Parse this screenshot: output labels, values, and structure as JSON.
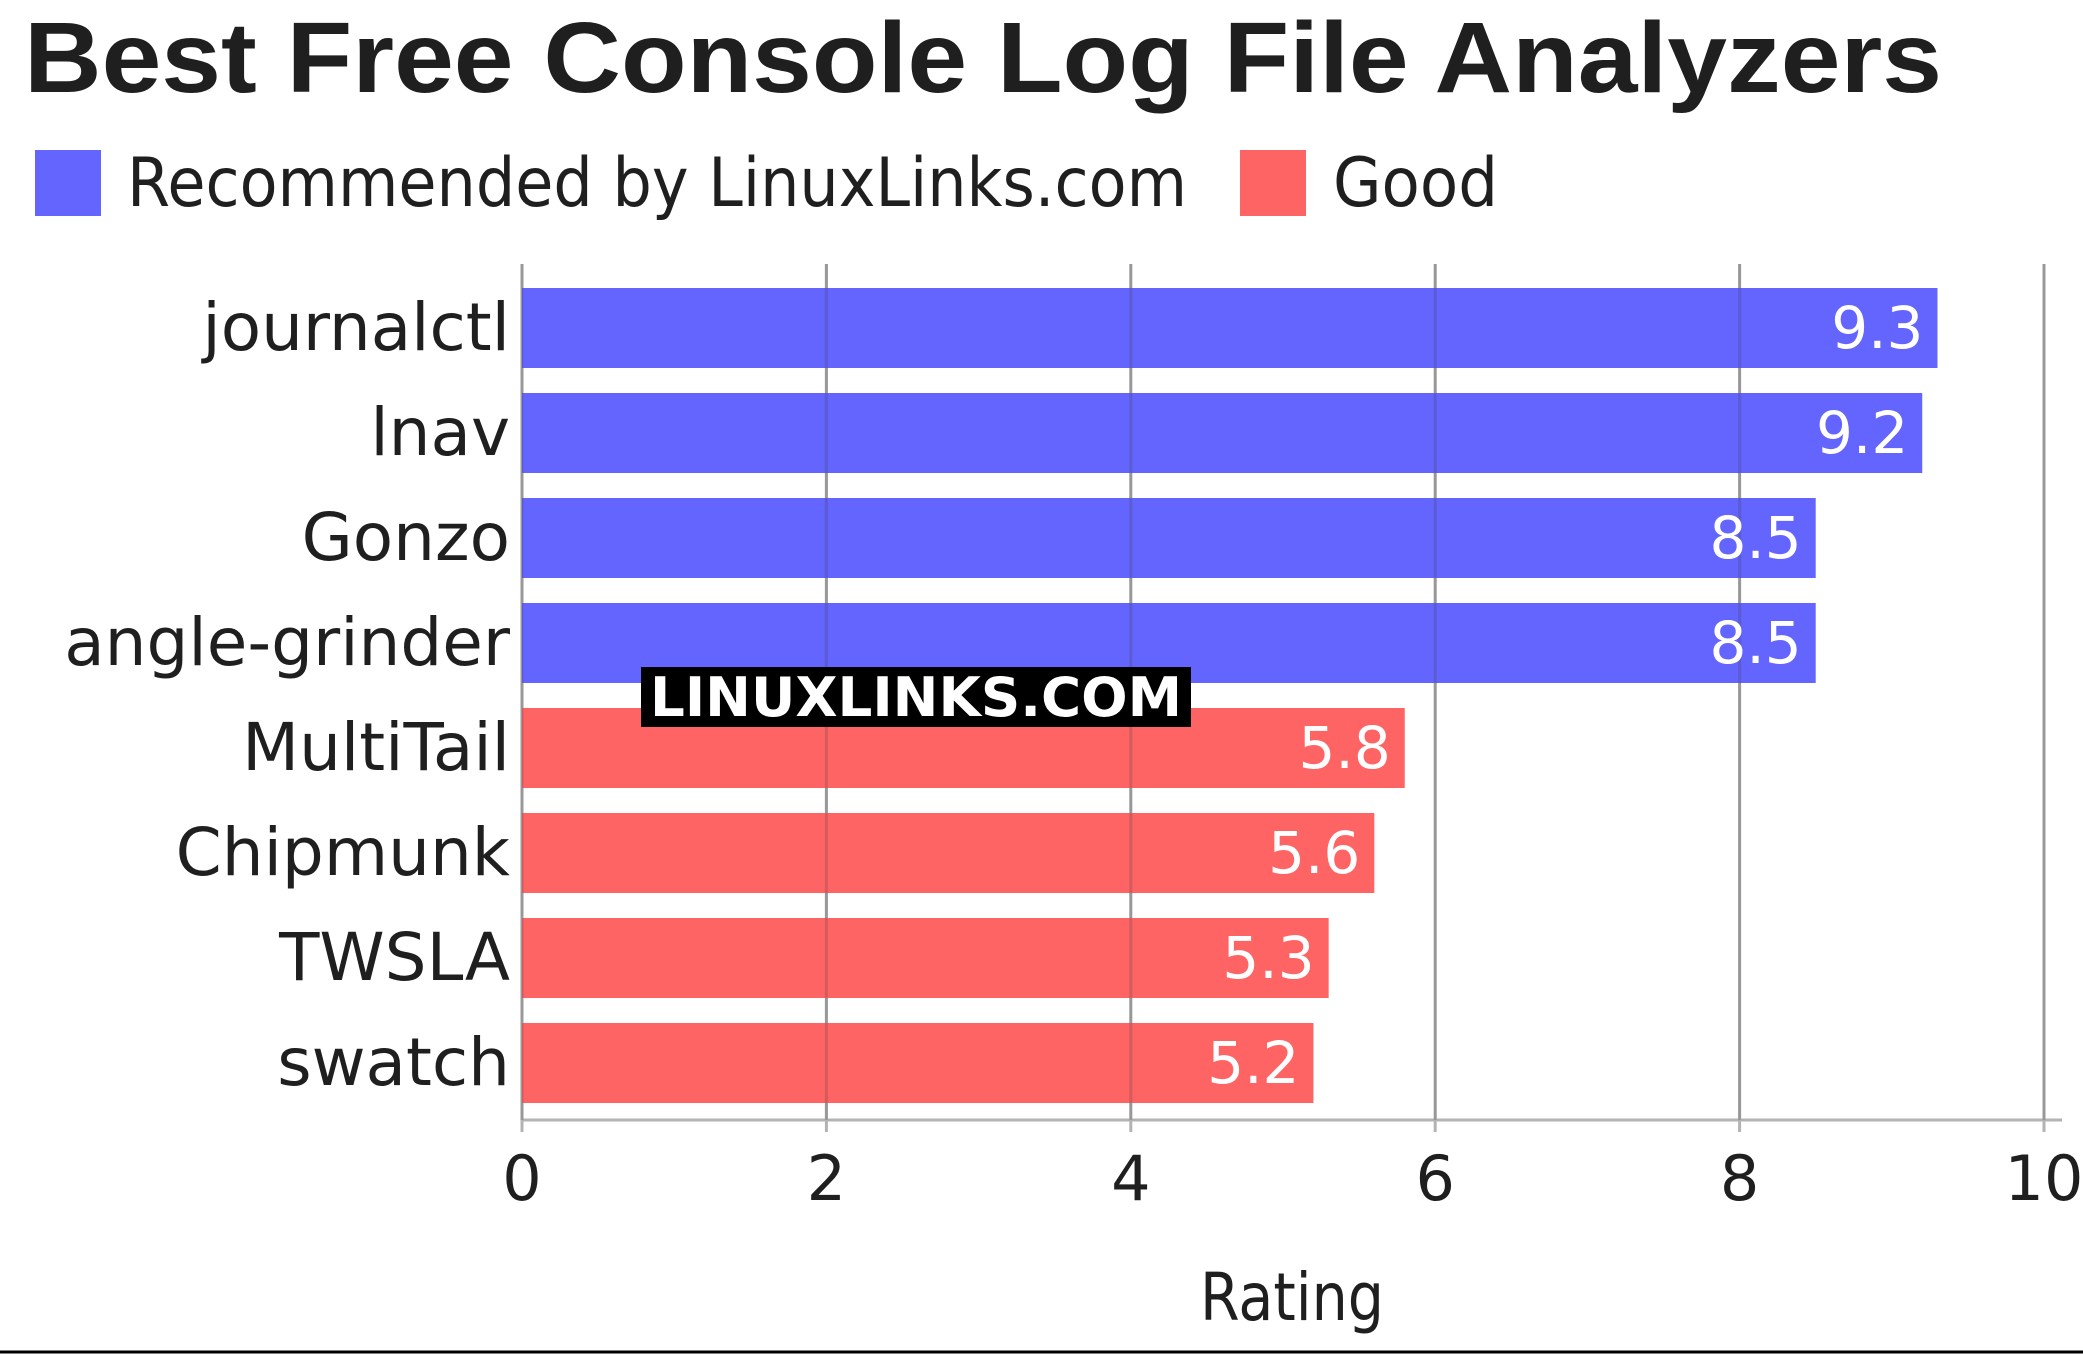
{
  "chart_data": {
    "type": "bar",
    "orientation": "horizontal",
    "title": "Best Free Console Log File Analyzers",
    "xlabel": "Rating",
    "ylabel": "",
    "xlim": [
      0,
      10
    ],
    "xticks": [
      "0",
      "2",
      "4",
      "6",
      "8",
      "10"
    ],
    "grid": true,
    "legend_placement": "top-left",
    "legend": [
      {
        "label": "Recommended by LinuxLinks.com",
        "color": "#6464ff"
      },
      {
        "label": "Good",
        "color": "#ff6464"
      }
    ],
    "categories": [
      "journalctl",
      "lnav",
      "Gonzo",
      "angle-grinder",
      "MultiTail",
      "Chipmunk",
      "TWSLA",
      "swatch"
    ],
    "values": [
      9.3,
      9.2,
      8.5,
      8.5,
      5.8,
      5.6,
      5.3,
      5.2
    ],
    "value_labels": [
      "9.3",
      "9.2",
      "8.5",
      "8.5",
      "5.8",
      "5.6",
      "5.3",
      "5.2"
    ],
    "bar_groups": [
      "Recommended by LinuxLinks.com",
      "Recommended by LinuxLinks.com",
      "Recommended by LinuxLinks.com",
      "Recommended by LinuxLinks.com",
      "Good",
      "Good",
      "Good",
      "Good"
    ]
  },
  "watermark": {
    "text": "LINUXLINKS.COM"
  },
  "colors": {
    "recommended": "#6464ff",
    "good": "#ff6464",
    "grid": "#b3b3b3",
    "text": "#1f1f1f"
  }
}
